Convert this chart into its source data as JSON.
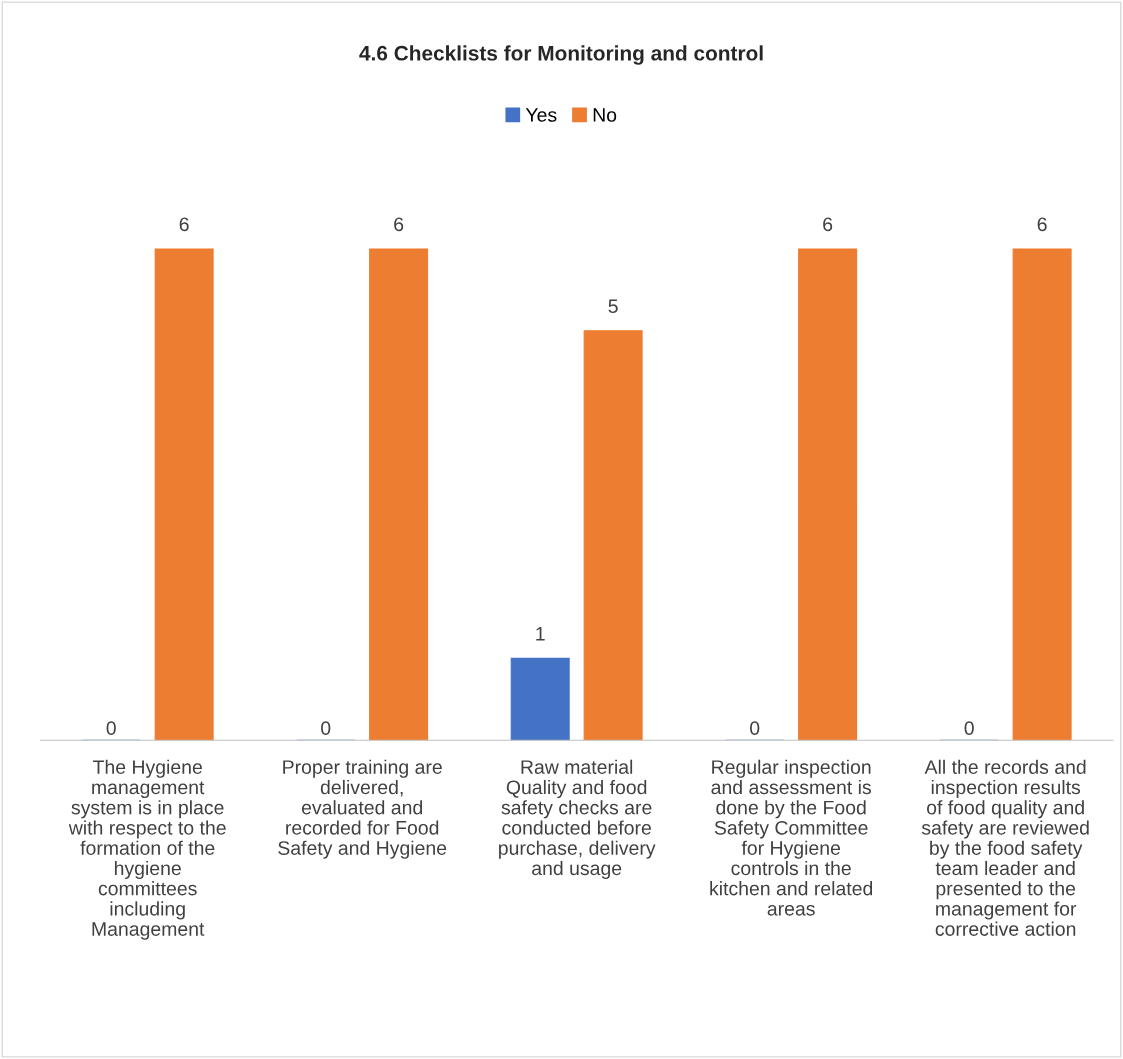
{
  "chart_data": {
    "type": "bar",
    "title": "4.6 Checklists for Monitoring and control",
    "categories": [
      "The Hygiene\nmanagement\nsystem is in place\nwith respect to the\nformation of the\nhygiene\ncommittees\nincluding\nManagement",
      "Proper training are\ndelivered,\nevaluated and\nrecorded for Food\nSafety and Hygiene",
      "Raw material\nQuality and food\nsafety checks are\nconducted before\npurchase, delivery\nand usage",
      "Regular inspection\nand assessment is\ndone by the Food\nSafety Committee\nfor Hygiene\ncontrols in the\nkitchen and related\nareas",
      "All the records and\ninspection results\nof food quality and\nsafety are reviewed\nby the food safety\nteam leader and\npresented to the\nmanagement for\ncorrective action"
    ],
    "series": [
      {
        "name": "Yes",
        "color": "#4472c4",
        "values": [
          0,
          0,
          1,
          0,
          0
        ]
      },
      {
        "name": "No",
        "color": "#ed7d31",
        "values": [
          6,
          6,
          5,
          6,
          6
        ]
      }
    ],
    "data_labels": true,
    "legend": "top",
    "grid": false,
    "tick_labels": "x"
  }
}
